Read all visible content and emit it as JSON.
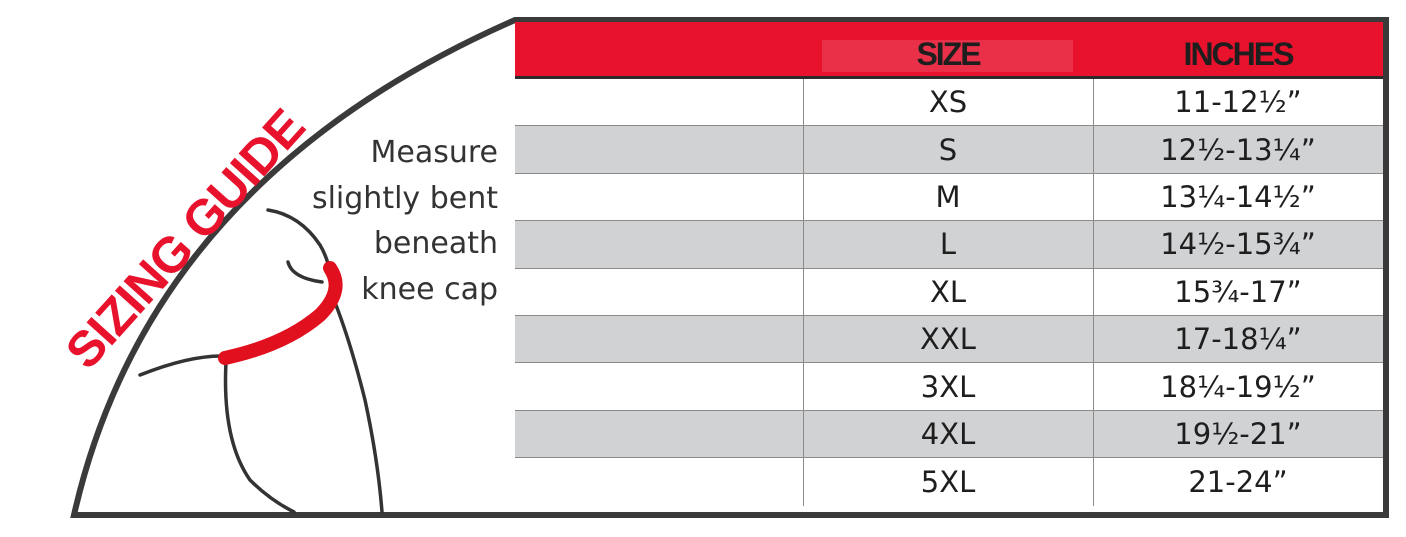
{
  "title": "SIZING GUIDE",
  "instructions": [
    "Measure",
    "slightly bent",
    "beneath",
    "knee cap"
  ],
  "table": {
    "headers": [
      "",
      "SIZE",
      "INCHES"
    ],
    "rows": [
      {
        "size": "XS",
        "inches": "11-12½”"
      },
      {
        "size": "S",
        "inches": "12½-13¼”"
      },
      {
        "size": "M",
        "inches": "13¼-14½”"
      },
      {
        "size": "L",
        "inches": "14½-15¾”"
      },
      {
        "size": "XL",
        "inches": "15¾-17”"
      },
      {
        "size": "XXL",
        "inches": "17-18¼”"
      },
      {
        "size": "3XL",
        "inches": "18¼-19½”"
      },
      {
        "size": "4XL",
        "inches": "19½-21”"
      },
      {
        "size": "5XL",
        "inches": "21-24”"
      }
    ]
  },
  "colors": {
    "accent": "#e8122d",
    "frame": "#3a3a3a",
    "stripe": "#d1d2d4"
  },
  "icons": [
    "knee-illustration"
  ]
}
